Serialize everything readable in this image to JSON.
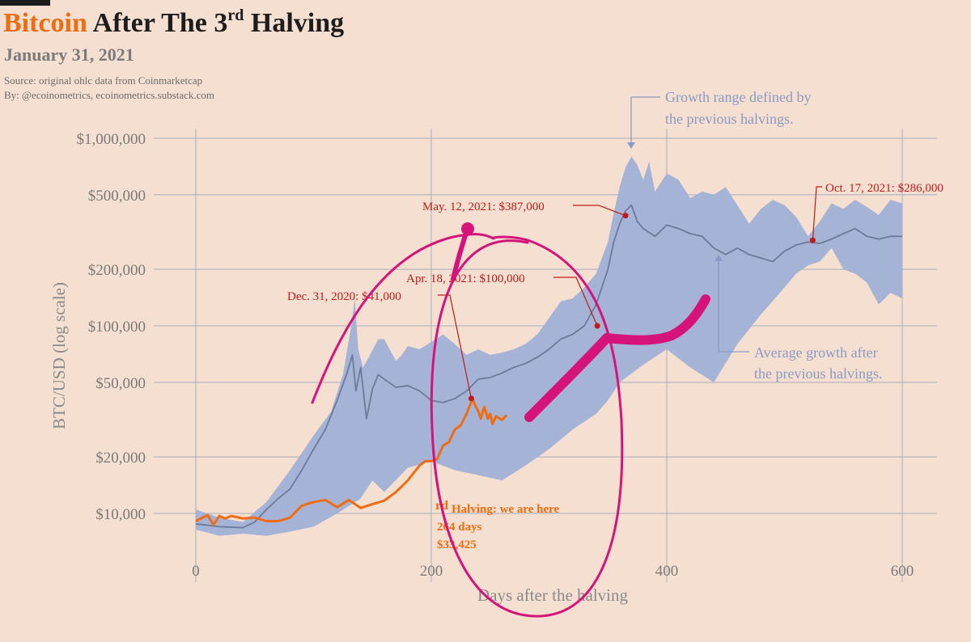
{
  "header": {
    "title_accent": "Bitcoin",
    "title_rest_1": "After The 3",
    "title_sup": "rd",
    "title_rest_2": "Halving",
    "date": "January 31, 2021",
    "source": "Source: original ohlc data from Coinmarketcap",
    "byline": "By: @ecoinometrics, ecoinometrics.substack.com"
  },
  "colors": {
    "background": "#f5dfd0",
    "band": "#a5b3d6",
    "average": "#6c7b9a",
    "current": "#f06c12",
    "annotation": "#c01a1a",
    "pen": "#d6137a",
    "grid": "#a9adbb"
  },
  "chart_data": {
    "type": "line",
    "scale_y": "log",
    "xlabel": "Days after the halving",
    "ylabel": "BTC/USD (log scale)",
    "xlim": [
      0,
      600
    ],
    "ylim": [
      7000,
      1000000
    ],
    "x_ticks": [
      0,
      200,
      400,
      600
    ],
    "y_ticks": [
      10000,
      20000,
      50000,
      100000,
      200000,
      500000,
      1000000
    ],
    "y_tick_labels": [
      "$10,000",
      "$20,000",
      "$50,000",
      "$100,000",
      "$200,000",
      "$500,000",
      "$1,000,000"
    ],
    "grid": true,
    "series": [
      {
        "kind": "band",
        "upper_x": [
          0,
          20,
          40,
          60,
          80,
          100,
          115,
          125,
          132,
          135,
          138,
          142,
          148,
          155,
          160,
          170,
          175,
          180,
          190,
          200,
          210,
          220,
          230,
          240,
          250,
          260,
          270,
          280,
          290,
          300,
          310,
          320,
          330,
          340,
          350,
          355,
          360,
          365,
          370,
          375,
          380,
          385,
          390,
          395,
          400,
          410,
          420,
          430,
          440,
          450,
          460,
          470,
          480,
          490,
          500,
          510,
          520,
          530,
          540,
          550,
          560,
          570,
          580,
          590,
          600
        ],
        "upper_y": [
          10500,
          9500,
          9000,
          11500,
          17000,
          26000,
          35000,
          55000,
          100000,
          140000,
          75000,
          60000,
          70000,
          85000,
          85000,
          65000,
          70000,
          78000,
          75000,
          82000,
          90000,
          80000,
          70000,
          75000,
          70000,
          72000,
          75000,
          80000,
          90000,
          110000,
          135000,
          140000,
          160000,
          190000,
          280000,
          400000,
          550000,
          700000,
          800000,
          720000,
          600000,
          750000,
          520000,
          580000,
          650000,
          600000,
          480000,
          520000,
          500000,
          550000,
          440000,
          350000,
          420000,
          470000,
          440000,
          380000,
          300000,
          360000,
          450000,
          420000,
          470000,
          430000,
          390000,
          470000,
          450000
        ],
        "lower_x": [
          0,
          20,
          40,
          60,
          80,
          100,
          120,
          140,
          150,
          160,
          180,
          200,
          220,
          240,
          260,
          280,
          300,
          320,
          340,
          350,
          360,
          380,
          400,
          420,
          440,
          460,
          480,
          500,
          510,
          520,
          530,
          540,
          550,
          560,
          570,
          580,
          590,
          600
        ],
        "lower_y": [
          8200,
          7600,
          7800,
          7600,
          8000,
          8500,
          10000,
          12000,
          15000,
          13000,
          17500,
          19000,
          17000,
          16000,
          15000,
          18000,
          22000,
          28000,
          34000,
          40000,
          50000,
          62000,
          75000,
          60000,
          50000,
          80000,
          115000,
          160000,
          190000,
          210000,
          220000,
          260000,
          200000,
          190000,
          170000,
          130000,
          150000,
          140000
        ]
      },
      {
        "name": "Average growth after the previous halvings.",
        "kind": "average",
        "x": [
          0,
          20,
          40,
          50,
          60,
          70,
          80,
          90,
          100,
          110,
          120,
          128,
          133,
          136,
          140,
          145,
          150,
          155,
          160,
          170,
          180,
          190,
          200,
          210,
          220,
          230,
          240,
          250,
          260,
          270,
          280,
          290,
          300,
          310,
          320,
          330,
          340,
          350,
          355,
          360,
          365,
          370,
          375,
          380,
          390,
          400,
          410,
          420,
          430,
          440,
          450,
          460,
          470,
          480,
          490,
          500,
          510,
          520,
          530,
          540,
          550,
          560,
          570,
          580,
          590,
          600
        ],
        "y": [
          8800,
          8500,
          8400,
          9000,
          10500,
          12000,
          13500,
          17000,
          22000,
          28000,
          40000,
          55000,
          70000,
          45000,
          60000,
          32000,
          46000,
          55000,
          52000,
          47000,
          48000,
          45000,
          40000,
          39000,
          41000,
          45000,
          52000,
          53000,
          56000,
          60000,
          63000,
          68000,
          75000,
          85000,
          90000,
          100000,
          130000,
          200000,
          280000,
          350000,
          410000,
          440000,
          360000,
          330000,
          300000,
          345000,
          330000,
          310000,
          300000,
          260000,
          240000,
          260000,
          240000,
          230000,
          220000,
          250000,
          270000,
          280000,
          275000,
          290000,
          310000,
          330000,
          300000,
          290000,
          300000,
          300000
        ]
      },
      {
        "name": "Bitcoin",
        "kind": "current",
        "x": [
          0,
          10,
          15,
          20,
          25,
          30,
          40,
          50,
          60,
          70,
          80,
          90,
          100,
          110,
          120,
          130,
          140,
          150,
          160,
          170,
          180,
          190,
          195,
          200,
          205,
          210,
          215,
          220,
          225,
          230,
          235,
          237,
          240,
          242,
          245,
          248,
          250,
          252,
          255,
          260,
          264
        ],
        "y": [
          9100,
          9800,
          8700,
          9700,
          9400,
          9700,
          9400,
          9500,
          9100,
          9100,
          9500,
          11000,
          11500,
          11800,
          10800,
          11800,
          10700,
          11200,
          11700,
          13000,
          15000,
          18000,
          19000,
          19000,
          19500,
          23000,
          24000,
          28000,
          29500,
          34000,
          41000,
          38000,
          35000,
          32000,
          37000,
          32000,
          34000,
          30000,
          33000,
          31500,
          33425
        ]
      }
    ],
    "annotations": [
      {
        "label": "Growth range defined by",
        "label_2": "the previous halvings."
      },
      {
        "label": "May. 12, 2021: $387,000",
        "x": 365,
        "y": 387000
      },
      {
        "label": "Oct. 17, 2021: $286,000",
        "x": 524,
        "y": 286000
      },
      {
        "label": "Apr. 18, 2021: $100,000",
        "x": 341,
        "y": 100000
      },
      {
        "label": "Dec. 31, 2020: $41,000",
        "x": 234,
        "y": 41000
      },
      {
        "label": "Average growth after",
        "label_2": "the previous halvings."
      },
      {
        "label_sup": "rd",
        "label": "Halving: we are here",
        "label_2": "264 days",
        "label_3": "$33,425"
      }
    ]
  }
}
